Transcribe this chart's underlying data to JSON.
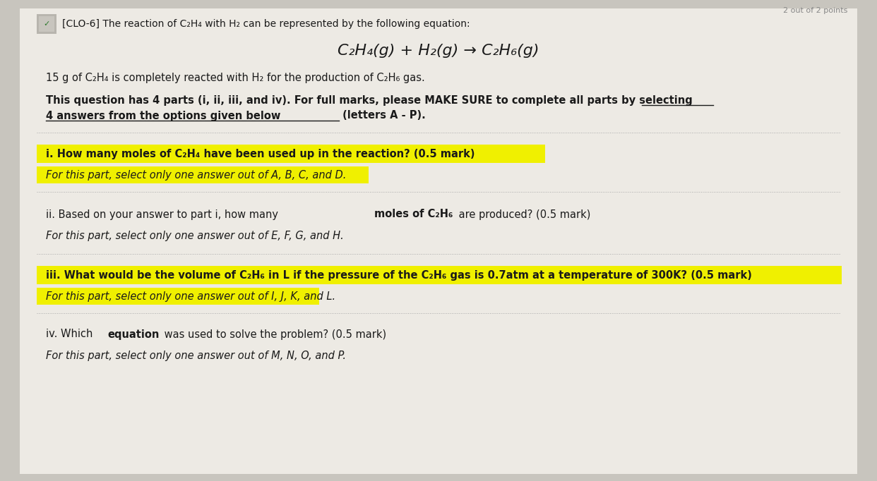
{
  "bg_color": "#c8c5be",
  "panel_color": "#edeae4",
  "highlight_yellow": "#f0f000",
  "text_color": "#1a1a1a",
  "header_line": "[CLO-6] The reaction of C₂H₄ with H₂ can be represented by the following equation:",
  "equation": "C₂H₄(g) + H₂(g) → C₂H₆(g)",
  "intro_line": "15 g of C₂H₄ is completely reacted with H₂ for the production of C₂H₆ gas.",
  "instr1a": "This question has 4 parts (i, ii, iii, and iv). For full marks, please ",
  "instr1b": "MAKE SURE",
  "instr1c": " to complete all parts by ",
  "instr1d": "selecting",
  "instr2a": "4 answers from the options given below",
  "instr2b": " (letters A - P).",
  "q1_a": "i. ",
  "q1_b": "How many moles of C₂H₄ have been used up in the reaction? (0.5 mark)",
  "q1_sub": "For this part, select only one answer out of A, B, C, and D.",
  "q2_a": "ii. Based on your answer to part i, how many ",
  "q2_b": "moles of C₂H₆",
  "q2_c": " are produced? (0.5 mark)",
  "q2_sub": "For this part, select only one answer out of E, F, G, and H.",
  "q3_a": "iii. ",
  "q3_b": "What would be the volume of C₂H₆ in L if the pressure of the C₂H₆ gas is 0.7atm at a temperature of 300K? (0.5 mark)",
  "q3_sub": "For this part, select only one answer out of I, J, K, and L.",
  "q4_a": "iv. Which ",
  "q4_b": "equation",
  "q4_c": " was used to solve the problem? (0.5 mark)",
  "q4_sub": "For this part, select only one answer out of M, N, O, and P.",
  "figsize": [
    12.42,
    6.82
  ],
  "dpi": 100
}
